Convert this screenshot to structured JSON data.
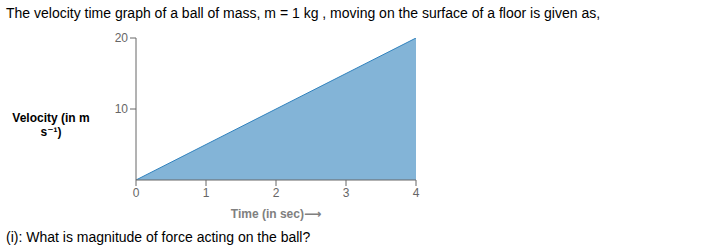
{
  "chart_data": {
    "type": "area",
    "title": "The velocity time graph of a ball of mass, m = 1 kg , moving on the surface of a floor is given as,",
    "annotations": [
      "(i): What is magnitude of force acting on the ball?"
    ],
    "xlabel": "Time (in sec)⟶",
    "ylabel": "Velocity (in m s⁻¹)",
    "x": [
      0,
      4
    ],
    "values": [
      0,
      20
    ],
    "xlim": [
      0,
      4
    ],
    "ylim": [
      0,
      20
    ],
    "xticks": [
      0,
      1,
      2,
      3,
      4
    ],
    "yticks": [
      10,
      20
    ],
    "grid": false
  }
}
